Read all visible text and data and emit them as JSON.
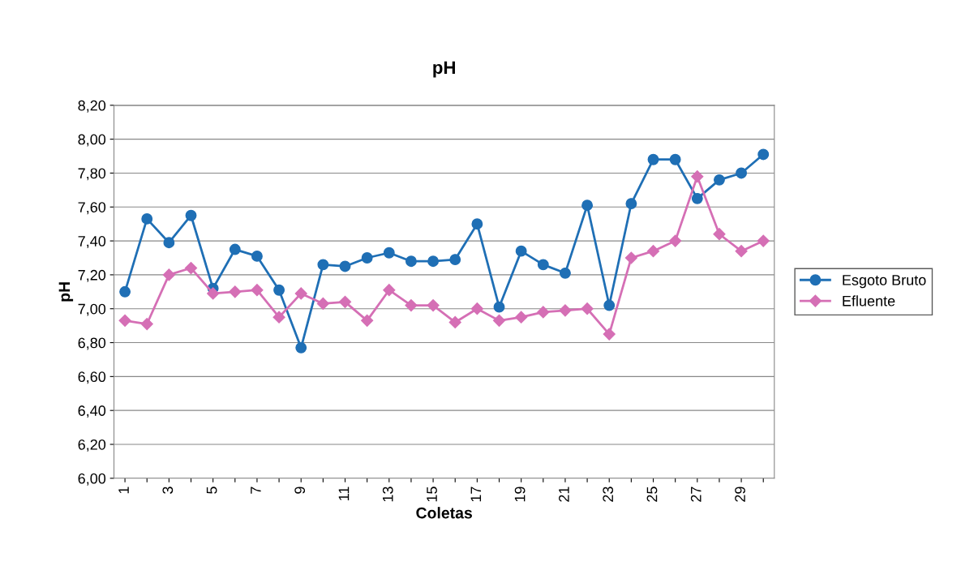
{
  "chart_data": {
    "type": "line",
    "title": "pH",
    "xlabel": "Coletas",
    "ylabel": "pH",
    "categories": [
      "1",
      null,
      "3",
      null,
      "5",
      null,
      "7",
      null,
      "9",
      null,
      "11",
      null,
      "13",
      null,
      "15",
      null,
      "17",
      null,
      "19",
      null,
      "21",
      null,
      "23",
      null,
      "25",
      null,
      "27",
      null,
      "29",
      null
    ],
    "series": [
      {
        "name": "Esgoto Bruto",
        "color": "#1f6fb5",
        "marker": "circle",
        "values": [
          7.1,
          7.53,
          7.39,
          7.55,
          7.12,
          7.35,
          7.31,
          7.11,
          6.77,
          7.26,
          7.25,
          7.3,
          7.33,
          7.28,
          7.28,
          7.29,
          7.5,
          7.01,
          7.34,
          7.26,
          7.21,
          7.61,
          7.02,
          7.62,
          7.88,
          7.88,
          7.65,
          7.76,
          7.8,
          7.91
        ]
      },
      {
        "name": "Efluente",
        "color": "#d56fb5",
        "marker": "diamond",
        "values": [
          6.93,
          6.91,
          7.2,
          7.24,
          7.09,
          7.1,
          7.11,
          6.95,
          7.09,
          7.03,
          7.04,
          6.93,
          7.11,
          7.02,
          7.02,
          6.92,
          7.0,
          6.93,
          6.95,
          6.98,
          6.99,
          7.0,
          6.85,
          7.3,
          7.34,
          7.4,
          7.78,
          7.44,
          7.34,
          7.4
        ]
      }
    ],
    "ylim": [
      6.0,
      8.2
    ],
    "yticks": [
      {
        "value": 6.0,
        "label": "6,00"
      },
      {
        "value": 6.2,
        "label": "6,20"
      },
      {
        "value": 6.4,
        "label": "6,40"
      },
      {
        "value": 6.6,
        "label": "6,60"
      },
      {
        "value": 6.8,
        "label": "6,80"
      },
      {
        "value": 7.0,
        "label": "7,00"
      },
      {
        "value": 7.2,
        "label": "7,20"
      },
      {
        "value": 7.4,
        "label": "7,40"
      },
      {
        "value": 7.6,
        "label": "7,60"
      },
      {
        "value": 7.8,
        "label": "7,80"
      },
      {
        "value": 8.0,
        "label": "8,00"
      },
      {
        "value": 8.2,
        "label": "8,20"
      }
    ],
    "grid": "y",
    "legend": "right"
  }
}
